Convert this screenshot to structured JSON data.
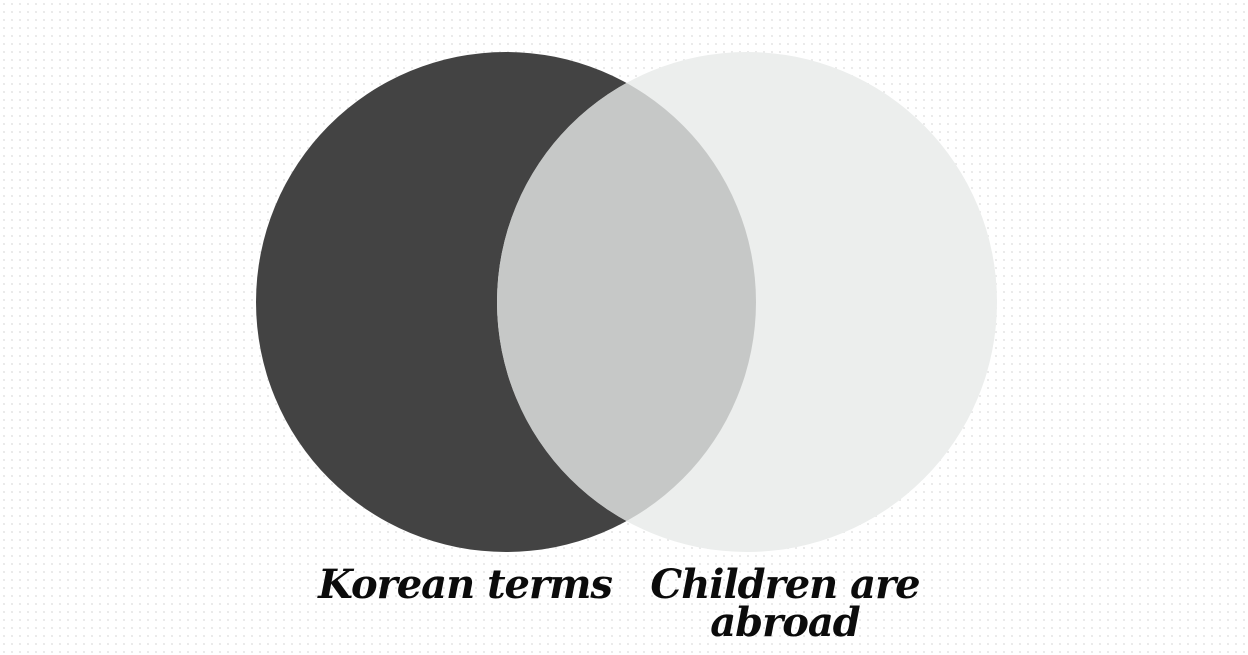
{
  "diagram": {
    "type": "venn-two-set",
    "sets": [
      {
        "id": "left",
        "label": "Korean terms",
        "color": "#434343"
      },
      {
        "id": "right",
        "label_line1": "Children are",
        "label_line2": "abroad",
        "color": "#eceeed"
      }
    ],
    "intersection": {
      "color": "#c6c8c7"
    },
    "background": {
      "color": "#ffffff",
      "dot_color": "#e9e9e9"
    }
  }
}
